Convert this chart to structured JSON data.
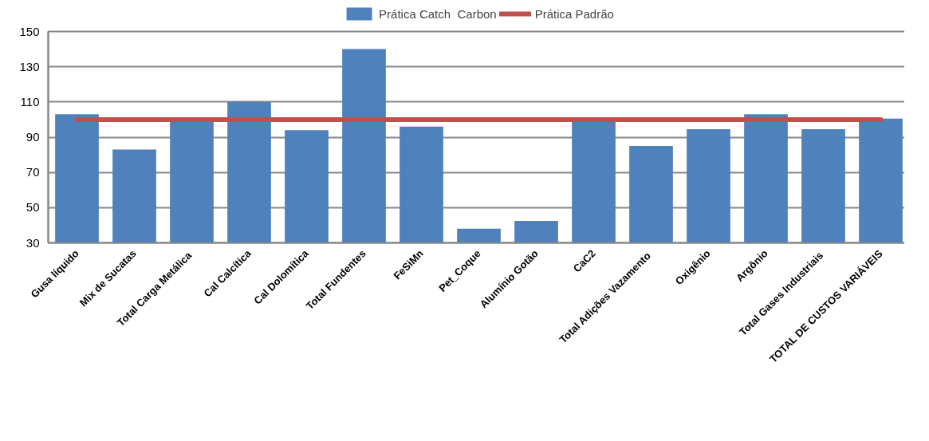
{
  "chart_data": {
    "type": "bar",
    "categories": [
      "Gusa líquido",
      "Mix de Sucatas",
      "Total Carga  Metálica",
      "Cal Calcítica",
      "Cal Dolomítica",
      "Total Fundentes",
      "FeSiMn",
      "Pet_Coque",
      "Alumínio Gotão",
      "CaC2",
      "Total Adições  Vazamento",
      "Oxigênio",
      "Argônio",
      "Total Gases  Industriais",
      "TOTAL DE CUSTOS VARIÁVEIS"
    ],
    "series": [
      {
        "name": "Prática Catch  Carbon",
        "color": "#4f81bd",
        "values": [
          103,
          83,
          99,
          110,
          94,
          140,
          96,
          38,
          42.5,
          99,
          85,
          94.5,
          103,
          94.5,
          100.5
        ]
      },
      {
        "name": "Prática Padrão",
        "type": "line",
        "color": "#c0504d",
        "values": [
          100,
          100,
          100,
          100,
          100,
          100,
          100,
          100,
          100,
          100,
          100,
          100,
          100,
          100,
          100
        ]
      }
    ],
    "ylim": [
      30,
      150
    ],
    "yticks": [
      30,
      50,
      70,
      90,
      110,
      130,
      150
    ],
    "grid": "y",
    "legend": "top"
  }
}
